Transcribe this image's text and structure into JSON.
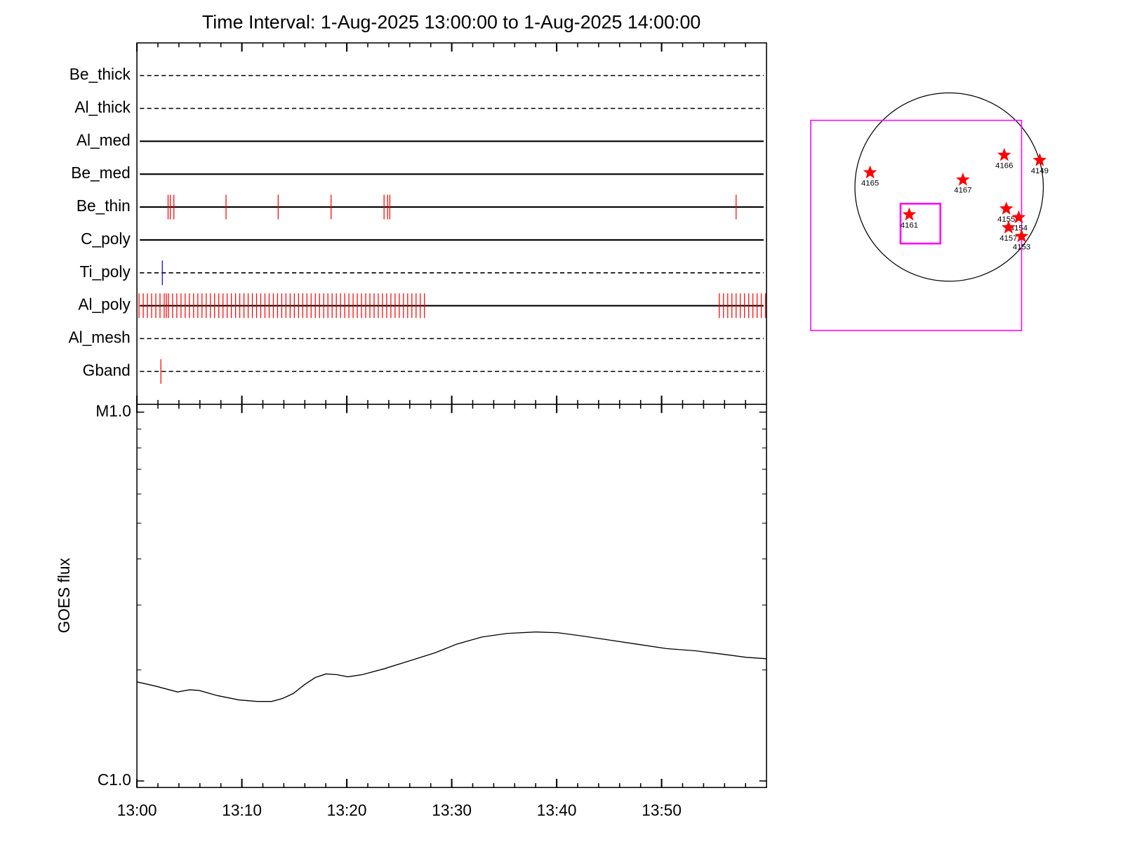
{
  "chart_data": [
    {
      "type": "event",
      "title": "Time Interval:  1-Aug-2025 13:00:00 to  1-Aug-2025 14:00:00",
      "xlim": [
        0,
        60
      ],
      "xticks": [
        0,
        10,
        20,
        30,
        40,
        50
      ],
      "minor_xticks": [
        2,
        4,
        6,
        8,
        12,
        14,
        16,
        18,
        22,
        24,
        26,
        28,
        32,
        34,
        36,
        38,
        42,
        44,
        46,
        48,
        52,
        54,
        56,
        58
      ],
      "series": [
        {
          "name": "Be_thick",
          "style": "dashed",
          "color": "red",
          "events": []
        },
        {
          "name": "Al_thick",
          "style": "dashed",
          "color": "red",
          "events": []
        },
        {
          "name": "Al_med",
          "style": "solid",
          "color": "red",
          "events": []
        },
        {
          "name": "Be_med",
          "style": "solid",
          "color": "red",
          "events": []
        },
        {
          "name": "Be_thin",
          "style": "solid",
          "color": "red",
          "events": [
            2.97,
            3.18,
            3.52,
            8.49,
            13.46,
            18.5,
            23.55,
            23.89,
            24.1,
            57.1
          ]
        },
        {
          "name": "C_poly",
          "style": "solid",
          "color": "red",
          "events": []
        },
        {
          "name": "Ti_poly",
          "style": "dashed",
          "color": "blue",
          "events": [
            2.42
          ]
        },
        {
          "name": "Al_poly",
          "style": "solid",
          "color": "red",
          "events": [
            0.2,
            0.6,
            1,
            1.4,
            1.8,
            2.2,
            2.6,
            2.8,
            3,
            3.4,
            3.8,
            4.2,
            4.6,
            5,
            5.4,
            5.8,
            6.2,
            6.6,
            7,
            7.4,
            7.8,
            8.2,
            8.6,
            9,
            9.4,
            9.8,
            10.2,
            10.6,
            11,
            11.4,
            11.8,
            12.2,
            12.6,
            13,
            13.4,
            13.8,
            14.2,
            14.6,
            15,
            15.4,
            15.8,
            16.2,
            16.6,
            17,
            17.4,
            17.8,
            18.2,
            18.6,
            19,
            19.4,
            19.8,
            20.2,
            20.6,
            21,
            21.4,
            21.8,
            22.2,
            22.6,
            23,
            23.4,
            23.8,
            24.2,
            24.6,
            25,
            25.4,
            25.8,
            26.2,
            26.6,
            27,
            27.4,
            55.5,
            55.9,
            56.3,
            56.7,
            57.1,
            57.5,
            57.9,
            58.3,
            58.7,
            59.1,
            59.5,
            59.9
          ]
        },
        {
          "name": "Al_mesh",
          "style": "dashed",
          "color": "red",
          "events": []
        },
        {
          "name": "Gband",
          "style": "dashed",
          "color": "red",
          "events": [
            2.28
          ]
        }
      ]
    },
    {
      "type": "line",
      "ylabel": "GOES flux",
      "log_y": true,
      "xlim": [
        0,
        60
      ],
      "ylim": [
        9.6e-07,
        1.05e-05
      ],
      "xticks": [
        {
          "value": 0,
          "label": "13:00"
        },
        {
          "value": 10,
          "label": "13:10"
        },
        {
          "value": 20,
          "label": "13:20"
        },
        {
          "value": 30,
          "label": "13:30"
        },
        {
          "value": 40,
          "label": "13:40"
        },
        {
          "value": 50,
          "label": "13:50"
        }
      ],
      "minor_xticks": [
        2,
        4,
        6,
        8,
        12,
        14,
        16,
        18,
        22,
        24,
        26,
        28,
        32,
        34,
        36,
        38,
        42,
        44,
        46,
        48,
        52,
        54,
        56,
        58
      ],
      "yticks": [
        {
          "value": 1e-06,
          "label": "C1.0"
        },
        {
          "value": 1e-05,
          "label": "M1.0"
        }
      ],
      "minor_yticks": [
        2e-06,
        3e-06,
        4e-06,
        5e-06,
        6e-06,
        7e-06,
        8e-06,
        9e-06
      ],
      "color": "#000000",
      "x": [
        0,
        1.8,
        3.87,
        5.04,
        5.94,
        7.66,
        9.74,
        11.46,
        12.84,
        13.88,
        14.91,
        15.95,
        16.99,
        18.02,
        19.06,
        20.09,
        21.47,
        23.54,
        25.96,
        28.38,
        30.45,
        32.87,
        35.27,
        38.04,
        40.12,
        42.19,
        44.95,
        47.71,
        50.47,
        53.23,
        56.0,
        58.07,
        60
      ],
      "values": [
        1.856e-06,
        1.807e-06,
        1.743e-06,
        1.767e-06,
        1.759e-06,
        1.704e-06,
        1.658e-06,
        1.643e-06,
        1.643e-06,
        1.673e-06,
        1.727e-06,
        1.823e-06,
        1.907e-06,
        1.951e-06,
        1.942e-06,
        1.916e-06,
        1.942e-06,
        2.014e-06,
        2.116e-06,
        2.224e-06,
        2.348e-06,
        2.456e-06,
        2.512e-06,
        2.535e-06,
        2.523e-06,
        2.478e-06,
        2.412e-06,
        2.348e-06,
        2.285e-06,
        2.254e-06,
        2.203e-06,
        2.164e-06,
        2.145e-06
      ]
    },
    {
      "type": "map",
      "rsun": 950,
      "disk_color": "#000000",
      "star_color": "red",
      "box_color": "magenta",
      "boxes": [
        {
          "xlim": [
            -1396,
            731
          ],
          "ylim": [
            -1447,
            673
          ]
        },
        {
          "xlim": [
            -490,
            -88
          ],
          "ylim": [
            -570,
            -168
          ]
        }
      ],
      "regions": [
        {
          "name": "4165",
          "x": -797,
          "y": 146
        },
        {
          "name": "4167",
          "x": 139,
          "y": 73
        },
        {
          "name": "4166",
          "x": 556,
          "y": 322
        },
        {
          "name": "4149",
          "x": 914,
          "y": 270
        },
        {
          "name": "4155",
          "x": 577,
          "y": -219
        },
        {
          "name": "4161",
          "x": -402,
          "y": -278
        },
        {
          "name": "4154",
          "x": 702,
          "y": -307
        },
        {
          "name": "4157",
          "x": 599,
          "y": -409
        },
        {
          "name": "4153",
          "x": 731,
          "y": -497
        }
      ]
    }
  ]
}
